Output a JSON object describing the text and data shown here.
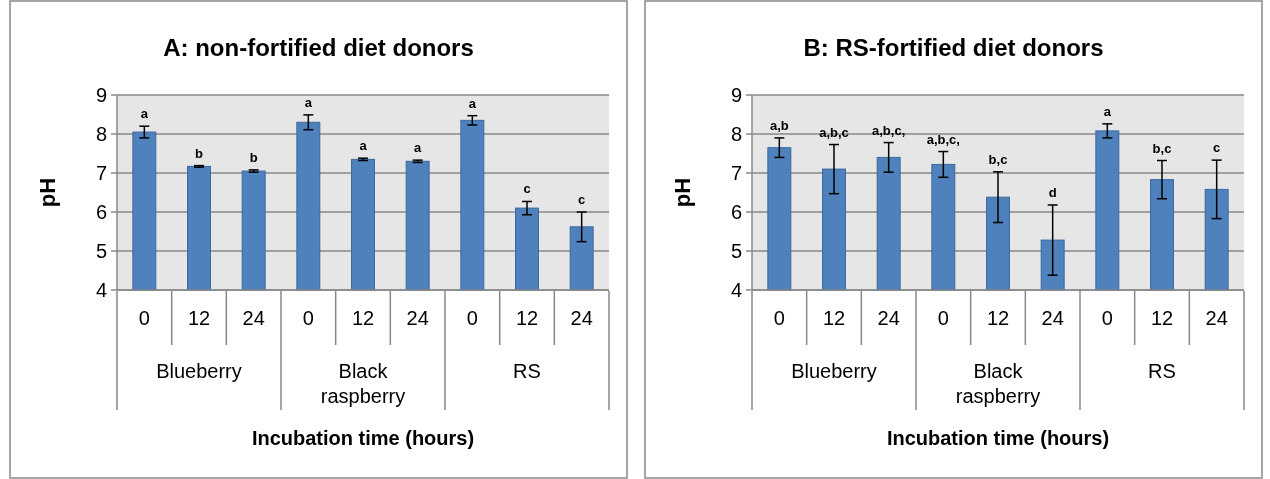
{
  "chart_data": [
    {
      "type": "bar",
      "title": "A: non-fortified diet donors",
      "xlabel": "Incubation time (hours)",
      "ylabel": "pH",
      "categories": [
        "0",
        "12",
        "24",
        "0",
        "12",
        "24",
        "0",
        "12",
        "24"
      ],
      "annotations": [
        "Blueberry",
        "Black raspberry",
        "RS"
      ],
      "values": [
        8.05,
        7.17,
        7.05,
        8.3,
        7.35,
        7.3,
        8.35,
        6.1,
        5.62
      ],
      "errors": [
        0.15,
        0.02,
        0.03,
        0.19,
        0.03,
        0.03,
        0.12,
        0.17,
        0.38
      ],
      "value_labels": [
        "a",
        "b",
        "b",
        "a",
        "a",
        "a",
        "a",
        "c",
        "c"
      ],
      "color": "#4f81bd",
      "ylim": [
        4,
        9
      ],
      "yticks": [
        4,
        5,
        6,
        7,
        8,
        9
      ],
      "grid": "y"
    },
    {
      "type": "bar",
      "title": "B: RS-fortified diet donors",
      "xlabel": "Incubation time (hours)",
      "ylabel": "pH",
      "categories": [
        "0",
        "12",
        "24",
        "0",
        "12",
        "24",
        "0",
        "12",
        "24"
      ],
      "annotations": [
        "Blueberry",
        "Black raspberry",
        "RS"
      ],
      "values": [
        7.65,
        7.1,
        7.4,
        7.22,
        6.38,
        5.28,
        8.08,
        6.83,
        6.58
      ],
      "errors": [
        0.25,
        0.63,
        0.38,
        0.33,
        0.65,
        0.9,
        0.18,
        0.49,
        0.75
      ],
      "value_labels": [
        "a,b",
        "a,b,c",
        "a,b,c,",
        "a,b,c,",
        "b,c",
        "d",
        "a",
        "b,c",
        "c"
      ],
      "color": "#4f81bd",
      "ylim": [
        4,
        9
      ],
      "yticks": [
        4,
        5,
        6,
        7,
        8,
        9
      ],
      "grid": "y"
    }
  ]
}
